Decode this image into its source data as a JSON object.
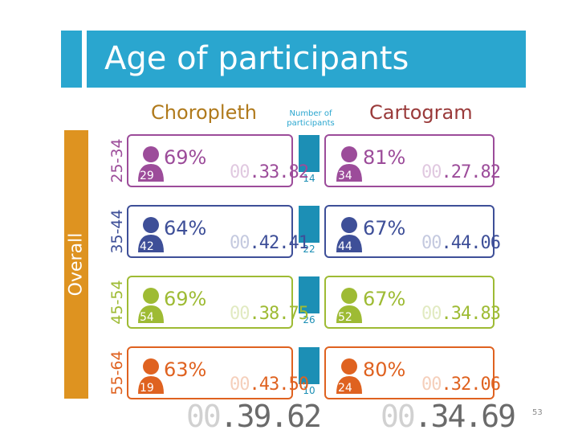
{
  "title": "Age of participants",
  "overall_label": "Overall",
  "chart_data": {
    "type": "table",
    "title": "Age of participants",
    "columns": {
      "choropleth": "Choropleth",
      "participants": "Number of participants",
      "cartogram": "Cartogram"
    },
    "rows": [
      {
        "age": "25-34",
        "color": "#9c4c9a",
        "count": "14",
        "choropleth": {
          "n": "29",
          "pct": "69%",
          "time_dim": "00",
          "time": ".33.82"
        },
        "cartogram": {
          "n": "34",
          "pct": "81%",
          "time_dim": "00",
          "time": ".27.82"
        }
      },
      {
        "age": "35-44",
        "color": "#3e4f98",
        "count": "22",
        "choropleth": {
          "n": "42",
          "pct": "64%",
          "time_dim": "00",
          "time": ".42.41"
        },
        "cartogram": {
          "n": "44",
          "pct": "67%",
          "time_dim": "00",
          "time": ".44.06"
        }
      },
      {
        "age": "45-54",
        "color": "#9ebb34",
        "count": "26",
        "choropleth": {
          "n": "54",
          "pct": "69%",
          "time_dim": "00",
          "time": ".38.75"
        },
        "cartogram": {
          "n": "52",
          "pct": "67%",
          "time_dim": "00",
          "time": ".34.83"
        }
      },
      {
        "age": "55-64",
        "color": "#df6220",
        "count": "10",
        "choropleth": {
          "n": "19",
          "pct": "63%",
          "time_dim": "00",
          "time": ".43.50"
        },
        "cartogram": {
          "n": "24",
          "pct": "80%",
          "time_dim": "00",
          "time": ".32.06"
        }
      }
    ],
    "overall_times": {
      "choropleth": {
        "time_dim": "00",
        "time": ".39.62"
      },
      "cartogram": {
        "time_dim": "00",
        "time": ".34.69"
      }
    }
  },
  "colors": {
    "title_bg": "#2aa6cf",
    "overall_bg": "#de9320",
    "choropleth_head": "#b07a1c",
    "cartogram_head": "#9a3a3a",
    "count_bar": "#1c8fb5"
  },
  "slide_number": "53"
}
